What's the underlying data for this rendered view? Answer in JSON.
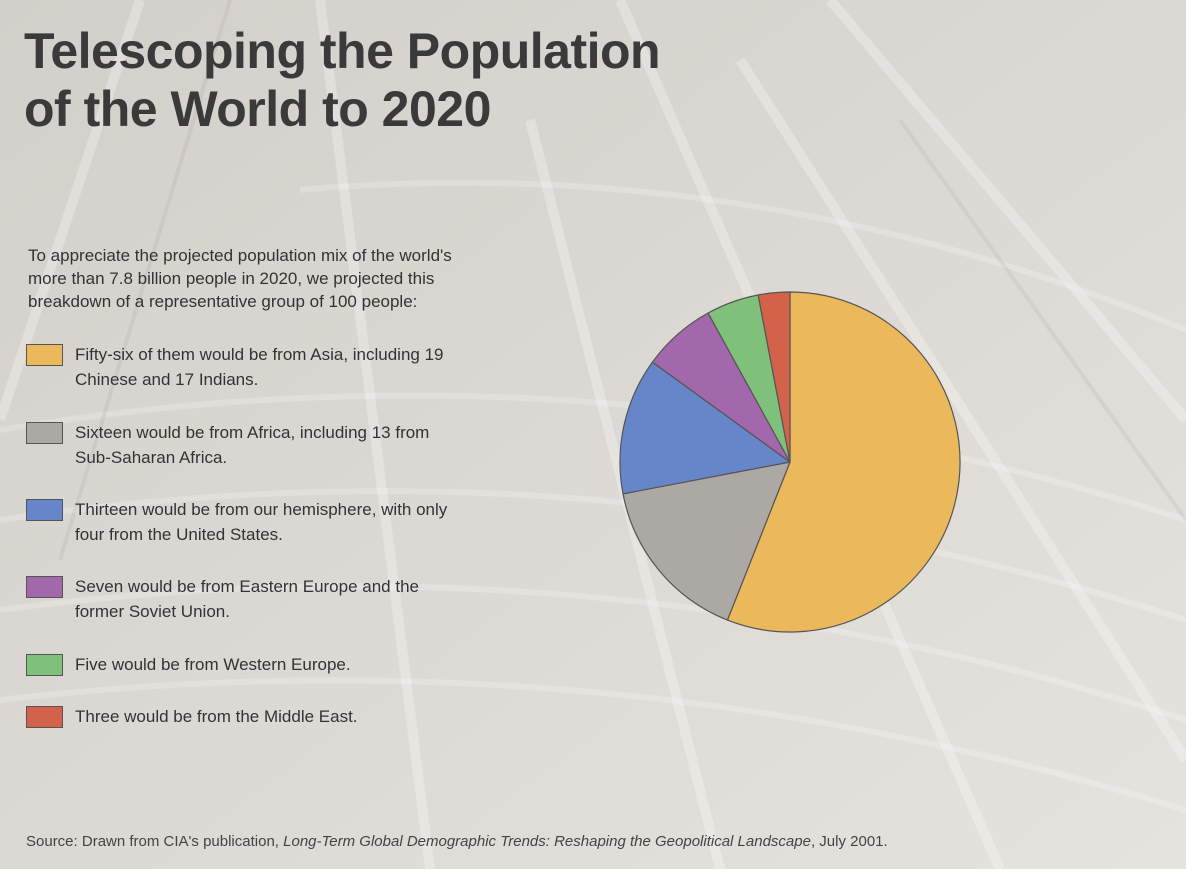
{
  "title_lines": [
    "Telescoping the Population",
    "of the World to 2020"
  ],
  "intro_lines": [
    "To appreciate the projected population mix of the world's",
    "more than 7.8 billion people in 2020, we projected this",
    "breakdown of a representative group of 100 people:"
  ],
  "legend": [
    {
      "lines": [
        "Fifty-six of them would be from Asia, including 19",
        "Chinese and 17 Indians."
      ],
      "color": "#ebb95c"
    },
    {
      "lines": [
        "Sixteen would be from Africa, including 13 from",
        "Sub-Saharan Africa."
      ],
      "color": "#aca8a4"
    },
    {
      "lines": [
        "Thirteen would be from our hemisphere, with only",
        "four from the United States."
      ],
      "color": "#6686c9"
    },
    {
      "lines": [
        "Seven would be from Eastern Europe and the",
        "former Soviet Union."
      ],
      "color": "#a268ab"
    },
    {
      "lines": [
        "Five would be from Western Europe."
      ],
      "color": "#7fc07b"
    },
    {
      "lines": [
        "Three would be from the Middle East."
      ],
      "color": "#d4614a"
    }
  ],
  "chart_data": {
    "type": "pie",
    "total": 100,
    "slices": [
      {
        "value": 56,
        "color": "#ebb95c"
      },
      {
        "value": 16,
        "color": "#aca8a4"
      },
      {
        "value": 13,
        "color": "#6686c9"
      },
      {
        "value": 7,
        "color": "#a268ab"
      },
      {
        "value": 5,
        "color": "#7fc07b"
      },
      {
        "value": 3,
        "color": "#d4614a"
      }
    ],
    "start_angle": "12 o'clock",
    "direction": "clockwise"
  },
  "source": {
    "prefix": "Source: Drawn from CIA's publication, ",
    "title": "Long-Term Global Demographic Trends: Reshaping the Geopolitical Landscape",
    "suffix": ", July 2001."
  }
}
